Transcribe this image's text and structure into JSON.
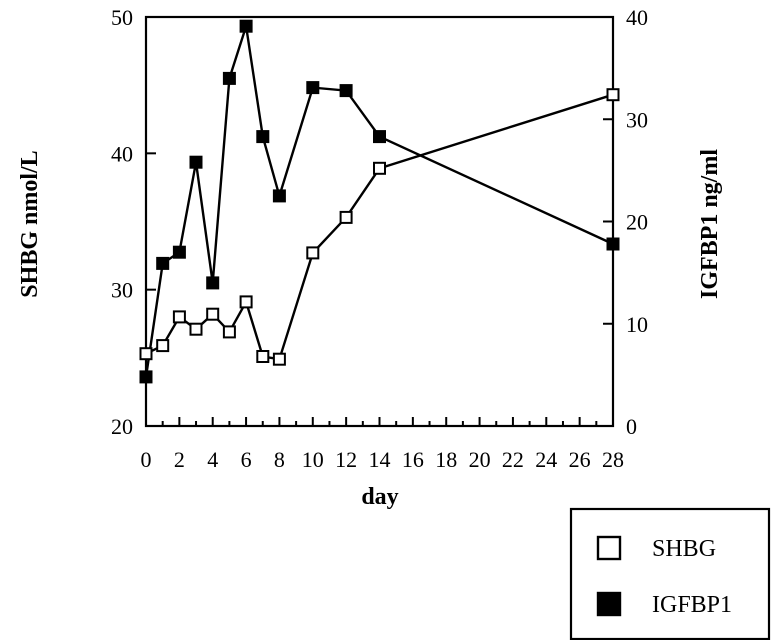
{
  "chart_data": {
    "type": "line",
    "xlabel": "day",
    "ylabel_left": "SHBG nmol/L",
    "ylabel_right": "IGFBP1 ng/ml",
    "xlim": [
      0,
      28
    ],
    "ylim_left": [
      20,
      50
    ],
    "ylim_right": [
      0,
      40
    ],
    "x_ticks": [
      0,
      2,
      4,
      6,
      8,
      10,
      12,
      14,
      16,
      18,
      20,
      22,
      24,
      26,
      28
    ],
    "y_left_ticks": [
      20,
      30,
      40,
      50
    ],
    "y_right_ticks": [
      0,
      10,
      20,
      30,
      40
    ],
    "grid": false,
    "legend_position": "bottom-right",
    "series": [
      {
        "name": "SHBG",
        "axis": "left",
        "marker": "open-square",
        "color": "#000000",
        "x": [
          0,
          1,
          2,
          3,
          4,
          5,
          6,
          7,
          8,
          10,
          12,
          14,
          28
        ],
        "y": [
          25.3,
          25.9,
          28.0,
          27.1,
          28.2,
          26.9,
          29.1,
          25.1,
          24.9,
          32.7,
          35.3,
          38.9,
          44.3
        ]
      },
      {
        "name": "IGFBP1",
        "axis": "right",
        "marker": "filled-square",
        "color": "#000000",
        "x": [
          0,
          1,
          2,
          3,
          4,
          5,
          6,
          7,
          8,
          10,
          12,
          14,
          28
        ],
        "y": [
          4.8,
          15.9,
          17.0,
          25.8,
          14.0,
          34.0,
          39.1,
          28.3,
          22.5,
          33.1,
          32.8,
          28.3,
          17.8
        ]
      }
    ]
  }
}
